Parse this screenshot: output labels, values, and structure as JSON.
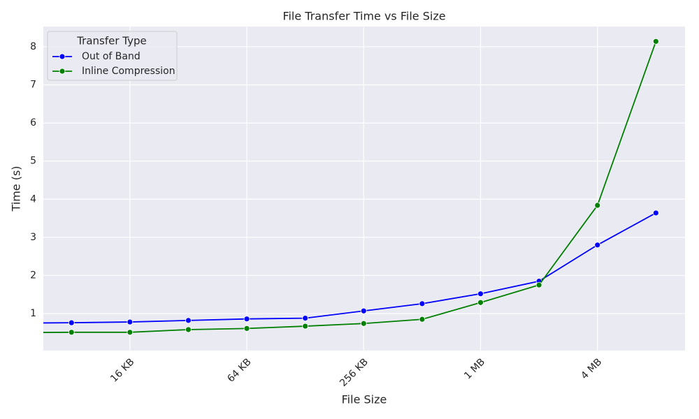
{
  "chart_data": {
    "type": "line",
    "title": "File Transfer Time vs File Size",
    "x_label": "File Size",
    "y_label": "Time (s)",
    "x": [
      4,
      8,
      16,
      32,
      64,
      128,
      256,
      512,
      1024,
      2048,
      4096,
      8192
    ],
    "series": [
      {
        "name": "Out of Band",
        "color": "#0000ff",
        "values": [
          0.75,
          0.76,
          0.78,
          0.82,
          0.86,
          0.88,
          1.07,
          1.26,
          1.52,
          1.85,
          2.8,
          3.64
        ]
      },
      {
        "name": "Inline Compression",
        "color": "#008000",
        "values": [
          0.5,
          0.51,
          0.51,
          0.58,
          0.61,
          0.67,
          0.74,
          0.85,
          1.29,
          1.75,
          3.84,
          8.14
        ]
      }
    ],
    "xlog": true,
    "xlim": [
      5.73,
      11570
    ],
    "xticks": [
      {
        "value": 16,
        "label": "16 KB"
      },
      {
        "value": 64,
        "label": "64 KB"
      },
      {
        "value": 256,
        "label": "256 KB"
      },
      {
        "value": 1024,
        "label": "1 MB"
      },
      {
        "value": 4096,
        "label": "4 MB"
      }
    ],
    "ylim": [
      0.03,
      8.53
    ],
    "yticks": [
      1,
      2,
      3,
      4,
      5,
      6,
      7,
      8
    ],
    "grid": true,
    "legend_title": "Transfer Type",
    "legend_position": "upper-left"
  }
}
